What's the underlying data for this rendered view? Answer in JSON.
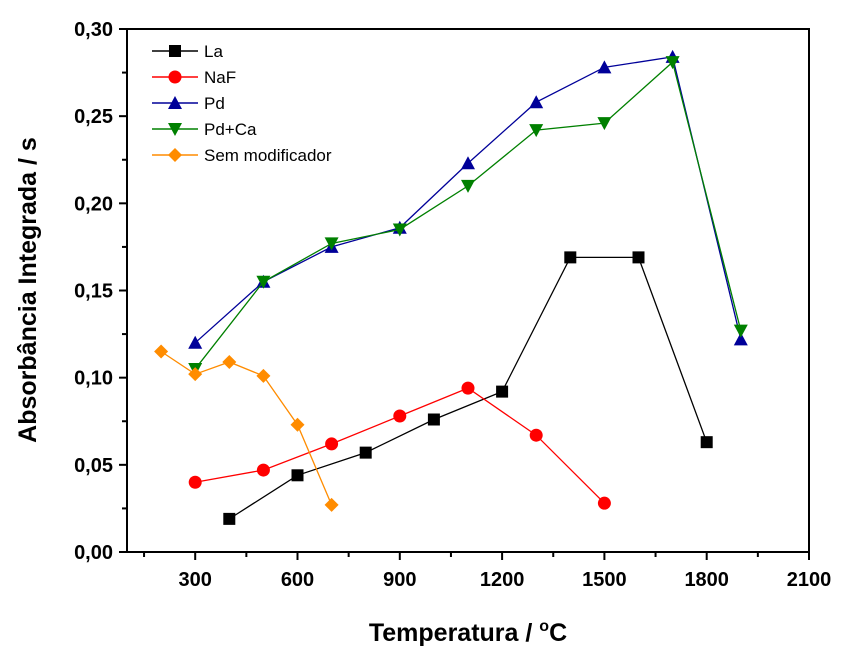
{
  "chart_data": {
    "type": "line",
    "xlabel": "Temperatura / ",
    "xlabel_sup": "o",
    "xlabel_unit": "C",
    "ylabel": "Absorbância Integrada / s",
    "xlim": [
      100,
      2100
    ],
    "ylim": [
      0,
      0.3
    ],
    "xticks": [
      300,
      600,
      900,
      1200,
      1500,
      1800,
      2100
    ],
    "xtick_labels": [
      "300",
      "600",
      "900",
      "1200",
      "1500",
      "1800",
      "2100"
    ],
    "yticks": [
      0,
      0.05,
      0.1,
      0.15,
      0.2,
      0.25,
      0.3
    ],
    "ytick_labels": [
      "0,00",
      "0,05",
      "0,10",
      "0,15",
      "0,20",
      "0,25",
      "0,30"
    ],
    "grid": false,
    "legend_position": "top-left",
    "series": [
      {
        "name": "La",
        "color": "#000000",
        "marker": "square",
        "x": [
          400,
          600,
          800,
          1000,
          1200,
          1400,
          1600,
          1800
        ],
        "y": [
          0.019,
          0.044,
          0.057,
          0.076,
          0.092,
          0.169,
          0.169,
          0.063
        ]
      },
      {
        "name": "NaF",
        "color": "#ff0000",
        "marker": "circle",
        "x": [
          300,
          500,
          700,
          900,
          1100,
          1300,
          1500
        ],
        "y": [
          0.04,
          0.047,
          0.062,
          0.078,
          0.094,
          0.067,
          0.028
        ]
      },
      {
        "name": "Pd",
        "color": "#000099",
        "marker": "triangle-up",
        "x": [
          300,
          500,
          700,
          900,
          1100,
          1300,
          1500,
          1700,
          1900
        ],
        "y": [
          0.12,
          0.155,
          0.175,
          0.186,
          0.223,
          0.258,
          0.278,
          0.284,
          0.122
        ]
      },
      {
        "name": "Pd+Ca",
        "color": "#008000",
        "marker": "triangle-down",
        "x": [
          300,
          500,
          700,
          900,
          1100,
          1300,
          1500,
          1700,
          1900
        ],
        "y": [
          0.105,
          0.155,
          0.177,
          0.185,
          0.21,
          0.242,
          0.246,
          0.281,
          0.127
        ]
      },
      {
        "name": "Sem modificador",
        "color": "#ff8c00",
        "marker": "diamond",
        "x": [
          200,
          300,
          400,
          500,
          600,
          700
        ],
        "y": [
          0.115,
          0.102,
          0.109,
          0.101,
          0.073,
          0.027
        ]
      }
    ]
  }
}
